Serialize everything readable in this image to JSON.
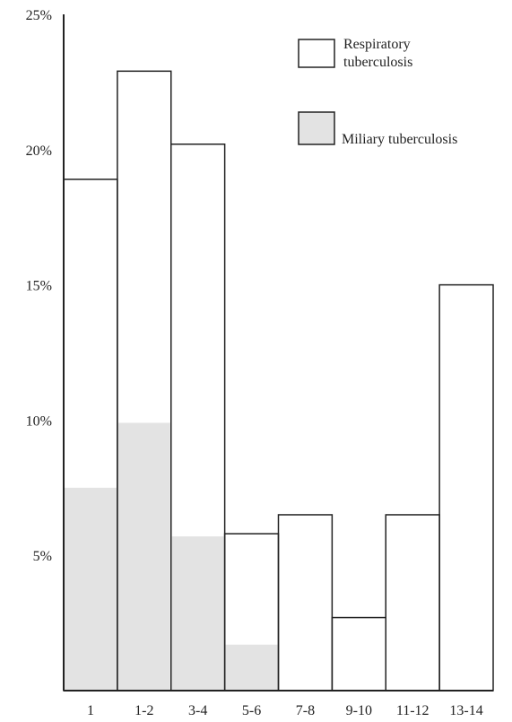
{
  "chart_data": {
    "type": "bar",
    "categories": [
      "1",
      "1-2",
      "3-4",
      "5-6",
      "7-8",
      "9-10",
      "11-12",
      "13-14"
    ],
    "series": [
      {
        "name": "Respiratory tuberculosis",
        "values": [
          18.9,
          22.9,
          20.2,
          5.8,
          6.5,
          2.7,
          6.5,
          15.0
        ],
        "color": "#ffffff",
        "stroke": "#222222"
      },
      {
        "name": "Miliary tuberculosis",
        "values": [
          7.5,
          9.9,
          5.7,
          1.7,
          0,
          0,
          0,
          0
        ],
        "color": "#e3e3e3",
        "stroke": "none"
      }
    ],
    "y_ticks": [
      {
        "value": 25,
        "label": "25%"
      },
      {
        "value": 20,
        "label": "20%"
      },
      {
        "value": 15,
        "label": "15%"
      },
      {
        "value": 10,
        "label": "10%"
      },
      {
        "value": 5,
        "label": "5%"
      }
    ],
    "ylim": [
      0,
      25
    ],
    "legend": {
      "placement": "top-right",
      "respiratory_line1": "Respiratory",
      "respiratory_line2": "tuberculosis",
      "miliary_label": "Miliary tuberculosis"
    },
    "title": "",
    "xlabel": "",
    "ylabel": "",
    "grid": false,
    "overlay": true
  }
}
